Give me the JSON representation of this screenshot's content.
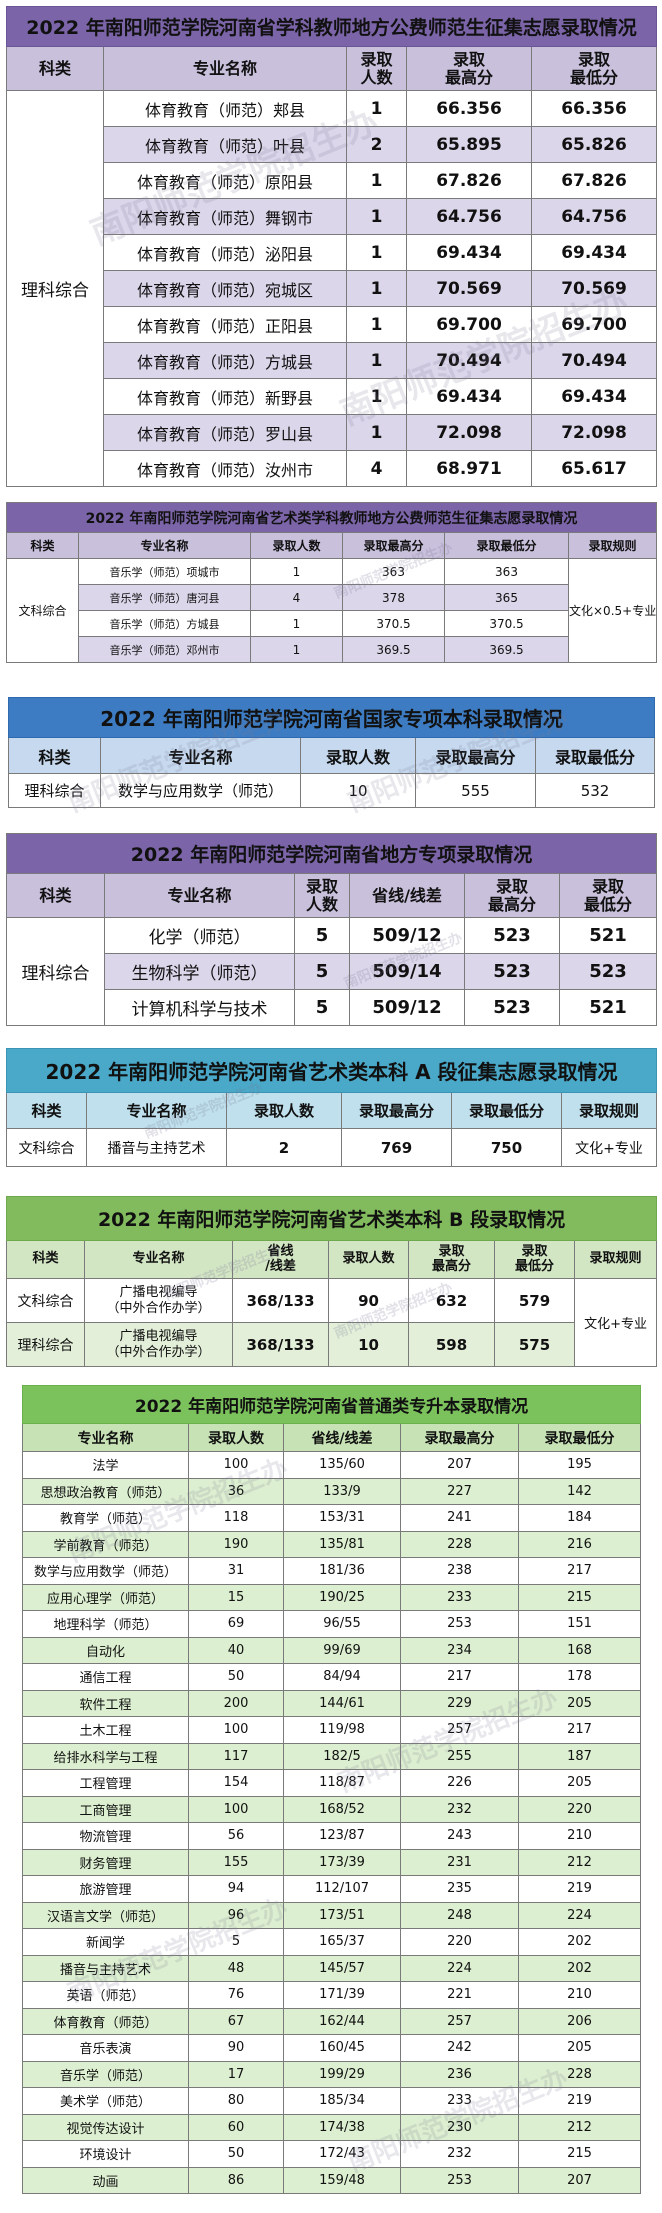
{
  "watermark": "南阳师范学院招生办",
  "s1": {
    "title": "2022 年南阳师范学院河南省学科教师地方公费师范生征集志愿录取情况",
    "headers": [
      "科类",
      "专业名称",
      "录取\n人数",
      "录取\n最高分",
      "录取\n最低分"
    ],
    "category": "理科综合",
    "rows": [
      {
        "major": "体育教育（师范）郏县",
        "num": "1",
        "max": "66.356",
        "min": "66.356"
      },
      {
        "major": "体育教育（师范）叶县",
        "num": "2",
        "max": "65.895",
        "min": "65.826"
      },
      {
        "major": "体育教育（师范）原阳县",
        "num": "1",
        "max": "67.826",
        "min": "67.826"
      },
      {
        "major": "体育教育（师范）舞钢市",
        "num": "1",
        "max": "64.756",
        "min": "64.756"
      },
      {
        "major": "体育教育（师范）泌阳县",
        "num": "1",
        "max": "69.434",
        "min": "69.434"
      },
      {
        "major": "体育教育（师范）宛城区",
        "num": "1",
        "max": "70.569",
        "min": "70.569"
      },
      {
        "major": "体育教育（师范）正阳县",
        "num": "1",
        "max": "69.700",
        "min": "69.700"
      },
      {
        "major": "体育教育（师范）方城县",
        "num": "1",
        "max": "70.494",
        "min": "70.494"
      },
      {
        "major": "体育教育（师范）新野县",
        "num": "1",
        "max": "69.434",
        "min": "69.434"
      },
      {
        "major": "体育教育（师范）罗山县",
        "num": "1",
        "max": "72.098",
        "min": "72.098"
      },
      {
        "major": "体育教育（师范）汝州市",
        "num": "4",
        "max": "68.971",
        "min": "65.617"
      }
    ]
  },
  "s2": {
    "title": "2022 年南阳师范学院河南省艺术类学科教师地方公费师范生征集志愿录取情况",
    "headers": [
      "科类",
      "专业名称",
      "录取人数",
      "录取最高分",
      "录取最低分",
      "录取规则"
    ],
    "category": "文科综合",
    "rule": "文化×0.5+专业",
    "rows": [
      {
        "major": "音乐学（师范）项城市",
        "num": "1",
        "max": "363",
        "min": "363"
      },
      {
        "major": "音乐学（师范）唐河县",
        "num": "4",
        "max": "378",
        "min": "365"
      },
      {
        "major": "音乐学（师范）方城县",
        "num": "1",
        "max": "370.5",
        "min": "370.5"
      },
      {
        "major": "音乐学（师范）邓州市",
        "num": "1",
        "max": "369.5",
        "min": "369.5"
      }
    ]
  },
  "s3": {
    "title": "2022 年南阳师范学院河南省国家专项本科录取情况",
    "headers": [
      "科类",
      "专业名称",
      "录取人数",
      "录取最高分",
      "录取最低分"
    ],
    "row": {
      "category": "理科综合",
      "major": "数学与应用数学（师范）",
      "num": "10",
      "max": "555",
      "min": "532"
    }
  },
  "s4": {
    "title": "2022 年南阳师范学院河南省地方专项录取情况",
    "headers": [
      "科类",
      "专业名称",
      "录取\n人数",
      "省线/线差",
      "录取\n最高分",
      "录取\n最低分"
    ],
    "category": "理科综合",
    "rows": [
      {
        "major": "化学（师范）",
        "num": "5",
        "line": "509/12",
        "max": "523",
        "min": "521"
      },
      {
        "major": "生物科学（师范）",
        "num": "5",
        "line": "509/14",
        "max": "523",
        "min": "523"
      },
      {
        "major": "计算机科学与技术",
        "num": "5",
        "line": "509/12",
        "max": "523",
        "min": "521"
      }
    ]
  },
  "s5": {
    "title": "2022 年南阳师范学院河南省艺术类本科 A 段征集志愿录取情况",
    "headers": [
      "科类",
      "专业名称",
      "录取人数",
      "录取最高分",
      "录取最低分",
      "录取规则"
    ],
    "row": {
      "category": "文科综合",
      "major": "播音与主持艺术",
      "num": "2",
      "max": "769",
      "min": "750",
      "rule": "文化+专业"
    }
  },
  "s6": {
    "title": "2022 年南阳师范学院河南省艺术类本科 B 段录取情况",
    "headers": [
      "科类",
      "专业名称",
      "省线\n/线差",
      "录取人数",
      "录取\n最高分",
      "录取\n最低分",
      "录取规则"
    ],
    "rule": "文化+专业",
    "rows": [
      {
        "category": "文科综合",
        "major": "广播电视编导\n（中外合作办学）",
        "line": "368/133",
        "num": "90",
        "max": "632",
        "min": "579"
      },
      {
        "category": "理科综合",
        "major": "广播电视编导\n（中外合作办学）",
        "line": "368/133",
        "num": "10",
        "max": "598",
        "min": "575"
      }
    ]
  },
  "s7": {
    "title": "2022 年南阳师范学院河南省普通类专升本录取情况",
    "headers": [
      "专业名称",
      "录取人数",
      "省线/线差",
      "录取最高分",
      "录取最低分"
    ],
    "rows": [
      {
        "major": "法学",
        "num": "100",
        "line": "135/60",
        "max": "207",
        "min": "195"
      },
      {
        "major": "思想政治教育（师范）",
        "num": "36",
        "line": "133/9",
        "max": "227",
        "min": "142"
      },
      {
        "major": "教育学（师范）",
        "num": "118",
        "line": "153/31",
        "max": "241",
        "min": "184"
      },
      {
        "major": "学前教育（师范）",
        "num": "190",
        "line": "135/81",
        "max": "228",
        "min": "216"
      },
      {
        "major": "数学与应用数学（师范）",
        "num": "31",
        "line": "181/36",
        "max": "238",
        "min": "217"
      },
      {
        "major": "应用心理学（师范）",
        "num": "15",
        "line": "190/25",
        "max": "233",
        "min": "215"
      },
      {
        "major": "地理科学（师范）",
        "num": "69",
        "line": "96/55",
        "max": "253",
        "min": "151"
      },
      {
        "major": "自动化",
        "num": "40",
        "line": "99/69",
        "max": "234",
        "min": "168"
      },
      {
        "major": "通信工程",
        "num": "50",
        "line": "84/94",
        "max": "217",
        "min": "178"
      },
      {
        "major": "软件工程",
        "num": "200",
        "line": "144/61",
        "max": "229",
        "min": "205"
      },
      {
        "major": "土木工程",
        "num": "100",
        "line": "119/98",
        "max": "257",
        "min": "217"
      },
      {
        "major": "给排水科学与工程",
        "num": "117",
        "line": "182/5",
        "max": "255",
        "min": "187"
      },
      {
        "major": "工程管理",
        "num": "154",
        "line": "118/87",
        "max": "226",
        "min": "205"
      },
      {
        "major": "工商管理",
        "num": "100",
        "line": "168/52",
        "max": "232",
        "min": "220"
      },
      {
        "major": "物流管理",
        "num": "56",
        "line": "123/87",
        "max": "243",
        "min": "210"
      },
      {
        "major": "财务管理",
        "num": "155",
        "line": "173/39",
        "max": "231",
        "min": "212"
      },
      {
        "major": "旅游管理",
        "num": "94",
        "line": "112/107",
        "max": "235",
        "min": "219"
      },
      {
        "major": "汉语言文学（师范）",
        "num": "96",
        "line": "173/51",
        "max": "248",
        "min": "224"
      },
      {
        "major": "新闻学",
        "num": "5",
        "line": "165/37",
        "max": "220",
        "min": "202"
      },
      {
        "major": "播音与主持艺术",
        "num": "48",
        "line": "145/57",
        "max": "224",
        "min": "202"
      },
      {
        "major": "英语（师范）",
        "num": "76",
        "line": "171/39",
        "max": "221",
        "min": "210"
      },
      {
        "major": "体育教育（师范）",
        "num": "67",
        "line": "162/44",
        "max": "257",
        "min": "206"
      },
      {
        "major": "音乐表演",
        "num": "90",
        "line": "160/45",
        "max": "242",
        "min": "205"
      },
      {
        "major": "音乐学（师范）",
        "num": "17",
        "line": "199/29",
        "max": "236",
        "min": "228"
      },
      {
        "major": "美术学（师范）",
        "num": "80",
        "line": "185/34",
        "max": "233",
        "min": "219"
      },
      {
        "major": "视觉传达设计",
        "num": "60",
        "line": "174/38",
        "max": "230",
        "min": "212"
      },
      {
        "major": "环境设计",
        "num": "50",
        "line": "172/43",
        "max": "232",
        "min": "215"
      },
      {
        "major": "动画",
        "num": "86",
        "line": "159/48",
        "max": "253",
        "min": "207"
      }
    ]
  }
}
